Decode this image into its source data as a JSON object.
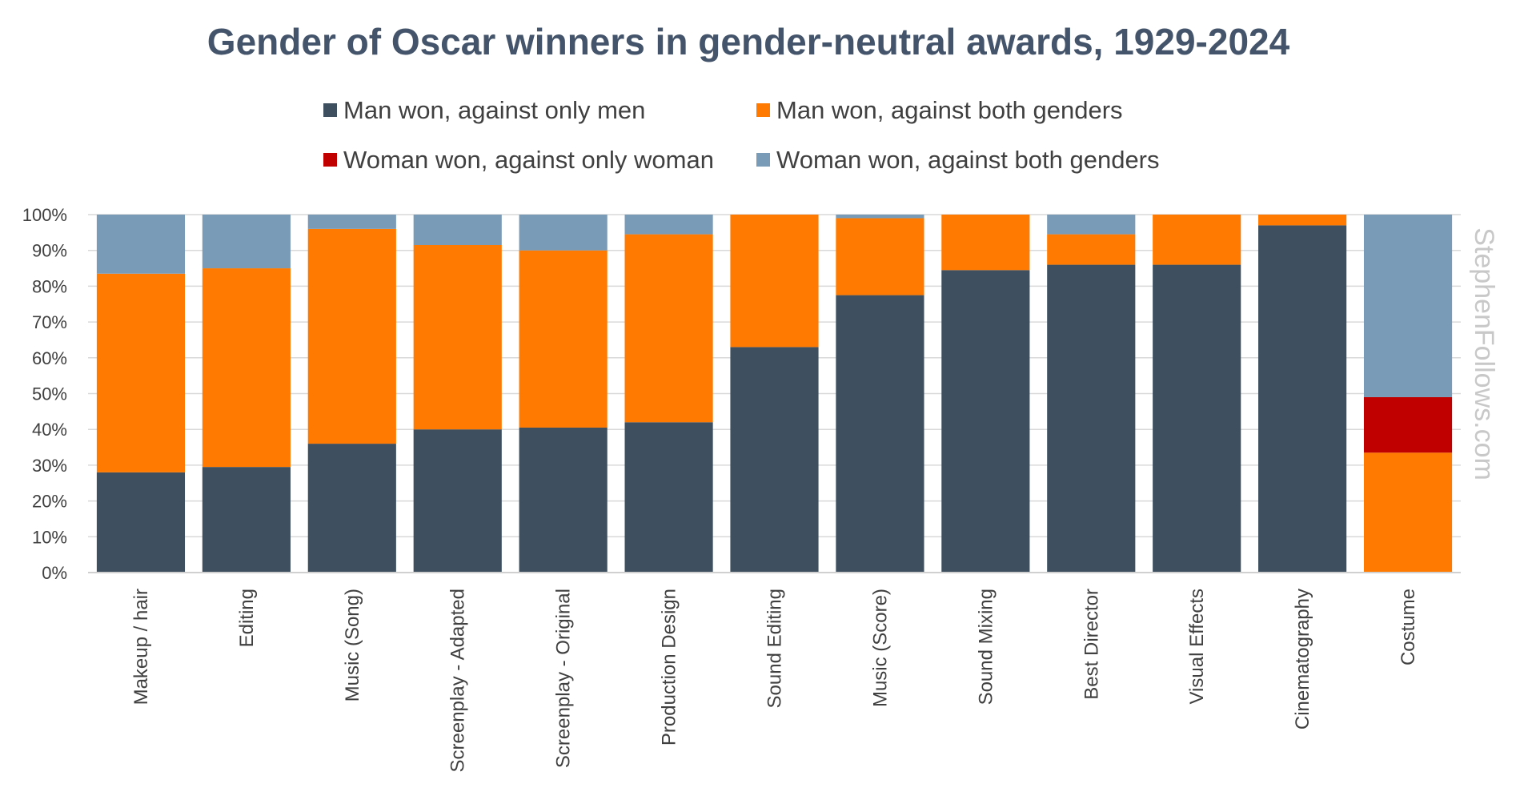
{
  "chart_data": {
    "type": "bar",
    "stacked": true,
    "title": "Gender of Oscar winners in gender-neutral awards, 1929-2024",
    "xlabel": "",
    "ylabel": "",
    "ylim": [
      0,
      100
    ],
    "y_ticks": [
      "0%",
      "10%",
      "20%",
      "30%",
      "40%",
      "50%",
      "60%",
      "70%",
      "80%",
      "90%",
      "100%"
    ],
    "grid": true,
    "legend_position": "top",
    "categories": [
      "Makeup / hair",
      "Editing",
      "Music (Song)",
      "Screenplay - Adapted",
      "Screenplay - Original",
      "Production Design",
      "Sound Editing",
      "Music (Score)",
      "Sound Mixing",
      "Best Director",
      "Visual Effects",
      "Cinematography",
      "Costume"
    ],
    "series": [
      {
        "name": "Man won, against only men",
        "color": "#3e5060",
        "values": [
          28,
          29.5,
          36,
          40,
          40.5,
          42,
          63,
          77.5,
          84.5,
          86,
          86,
          97,
          0
        ]
      },
      {
        "name": "Man won, against both genders",
        "color": "#ff7a00",
        "values": [
          55.5,
          55.5,
          60,
          51.5,
          49.5,
          52.5,
          37,
          21.5,
          15.5,
          8.5,
          14,
          3,
          33.5
        ]
      },
      {
        "name": "Woman won, against only woman",
        "color": "#c00000",
        "values": [
          0,
          0,
          0,
          0,
          0,
          0,
          0,
          0,
          0,
          0,
          0,
          0,
          15.5
        ]
      },
      {
        "name": "Woman won, against both genders",
        "color": "#7a9bb7",
        "values": [
          16.5,
          15,
          4,
          8.5,
          10,
          5.5,
          0,
          1,
          0,
          5.5,
          0,
          0,
          51
        ]
      }
    ],
    "watermark": "StephenFollows.com"
  }
}
